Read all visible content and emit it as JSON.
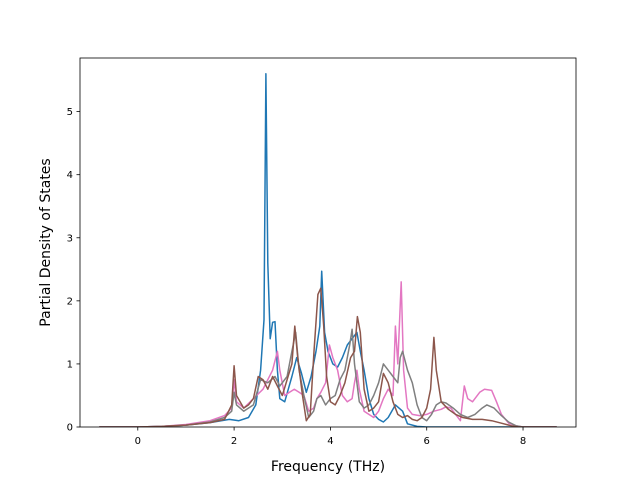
{
  "chart_data": {
    "type": "line",
    "title": "",
    "xlabel": "Frequency (THz)",
    "ylabel": "Partial Density of States",
    "xlim": [
      -1.2,
      9.1
    ],
    "ylim": [
      0,
      5.85
    ],
    "x_ticks": [
      0,
      2,
      4,
      6,
      8
    ],
    "y_ticks": [
      0,
      1,
      2,
      3,
      4,
      5
    ],
    "grid": false,
    "legend": "none",
    "series": [
      {
        "color": "#1f77b4",
        "points": [
          [
            -0.8,
            0
          ],
          [
            0,
            0
          ],
          [
            0.5,
            0.01
          ],
          [
            1.0,
            0.03
          ],
          [
            1.5,
            0.07
          ],
          [
            1.9,
            0.12
          ],
          [
            2.1,
            0.1
          ],
          [
            2.3,
            0.15
          ],
          [
            2.45,
            0.35
          ],
          [
            2.55,
            0.9
          ],
          [
            2.62,
            1.7
          ],
          [
            2.66,
            5.6
          ],
          [
            2.7,
            2.6
          ],
          [
            2.75,
            1.4
          ],
          [
            2.8,
            1.66
          ],
          [
            2.85,
            1.67
          ],
          [
            2.9,
            0.9
          ],
          [
            2.95,
            0.45
          ],
          [
            3.05,
            0.4
          ],
          [
            3.2,
            0.8
          ],
          [
            3.3,
            1.1
          ],
          [
            3.4,
            0.85
          ],
          [
            3.5,
            0.55
          ],
          [
            3.6,
            0.8
          ],
          [
            3.7,
            1.2
          ],
          [
            3.78,
            1.6
          ],
          [
            3.82,
            2.47
          ],
          [
            3.88,
            1.5
          ],
          [
            3.95,
            1.2
          ],
          [
            4.05,
            1.0
          ],
          [
            4.15,
            0.95
          ],
          [
            4.25,
            1.1
          ],
          [
            4.35,
            1.3
          ],
          [
            4.45,
            1.4
          ],
          [
            4.55,
            1.5
          ],
          [
            4.62,
            1.2
          ],
          [
            4.7,
            0.9
          ],
          [
            4.8,
            0.45
          ],
          [
            4.9,
            0.2
          ],
          [
            5.0,
            0.12
          ],
          [
            5.1,
            0.08
          ],
          [
            5.2,
            0.15
          ],
          [
            5.35,
            0.35
          ],
          [
            5.5,
            0.25
          ],
          [
            5.6,
            0.05
          ],
          [
            5.8,
            0.01
          ],
          [
            6.0,
            0
          ],
          [
            8.7,
            0
          ]
        ]
      },
      {
        "color": "#e377c2",
        "points": [
          [
            -0.8,
            0
          ],
          [
            0,
            0
          ],
          [
            0.5,
            0.01
          ],
          [
            1.0,
            0.04
          ],
          [
            1.5,
            0.1
          ],
          [
            1.8,
            0.18
          ],
          [
            1.95,
            0.3
          ],
          [
            2.0,
            0.75
          ],
          [
            2.05,
            0.4
          ],
          [
            2.2,
            0.3
          ],
          [
            2.4,
            0.45
          ],
          [
            2.6,
            0.6
          ],
          [
            2.8,
            0.9
          ],
          [
            2.9,
            1.2
          ],
          [
            2.95,
            0.9
          ],
          [
            3.05,
            0.5
          ],
          [
            3.15,
            0.55
          ],
          [
            3.25,
            0.6
          ],
          [
            3.35,
            0.55
          ],
          [
            3.45,
            0.5
          ],
          [
            3.55,
            0.25
          ],
          [
            3.65,
            0.3
          ],
          [
            3.72,
            0.45
          ],
          [
            3.8,
            0.55
          ],
          [
            3.9,
            0.7
          ],
          [
            3.98,
            1.3
          ],
          [
            4.05,
            1.1
          ],
          [
            4.15,
            0.9
          ],
          [
            4.25,
            0.5
          ],
          [
            4.35,
            0.4
          ],
          [
            4.45,
            0.45
          ],
          [
            4.5,
            0.7
          ],
          [
            4.55,
            0.9
          ],
          [
            4.6,
            0.6
          ],
          [
            4.7,
            0.25
          ],
          [
            4.8,
            0.2
          ],
          [
            4.9,
            0.15
          ],
          [
            5.0,
            0.25
          ],
          [
            5.1,
            0.45
          ],
          [
            5.2,
            0.6
          ],
          [
            5.3,
            0.5
          ],
          [
            5.35,
            1.6
          ],
          [
            5.4,
            1.0
          ],
          [
            5.47,
            2.3
          ],
          [
            5.52,
            0.9
          ],
          [
            5.6,
            0.3
          ],
          [
            5.7,
            0.2
          ],
          [
            5.85,
            0.18
          ],
          [
            6.0,
            0.2
          ],
          [
            6.15,
            0.25
          ],
          [
            6.3,
            0.28
          ],
          [
            6.4,
            0.32
          ],
          [
            6.5,
            0.3
          ],
          [
            6.6,
            0.2
          ],
          [
            6.7,
            0.1
          ],
          [
            6.78,
            0.65
          ],
          [
            6.85,
            0.45
          ],
          [
            6.95,
            0.4
          ],
          [
            7.1,
            0.55
          ],
          [
            7.2,
            0.6
          ],
          [
            7.35,
            0.58
          ],
          [
            7.45,
            0.4
          ],
          [
            7.55,
            0.2
          ],
          [
            7.7,
            0.06
          ],
          [
            7.85,
            0.02
          ],
          [
            8.0,
            0
          ],
          [
            8.7,
            0
          ]
        ]
      },
      {
        "color": "#7f7f7f",
        "points": [
          [
            -0.8,
            0
          ],
          [
            0,
            0
          ],
          [
            0.5,
            0.01
          ],
          [
            1.0,
            0.03
          ],
          [
            1.5,
            0.08
          ],
          [
            1.8,
            0.15
          ],
          [
            1.95,
            0.25
          ],
          [
            2.0,
            0.55
          ],
          [
            2.05,
            0.35
          ],
          [
            2.2,
            0.25
          ],
          [
            2.4,
            0.35
          ],
          [
            2.55,
            0.75
          ],
          [
            2.7,
            0.7
          ],
          [
            2.85,
            0.8
          ],
          [
            2.95,
            0.65
          ],
          [
            3.1,
            0.8
          ],
          [
            3.2,
            1.2
          ],
          [
            3.28,
            1.5
          ],
          [
            3.35,
            0.9
          ],
          [
            3.45,
            0.5
          ],
          [
            3.55,
            0.15
          ],
          [
            3.65,
            0.25
          ],
          [
            3.72,
            0.45
          ],
          [
            3.8,
            0.5
          ],
          [
            3.9,
            0.35
          ],
          [
            4.0,
            0.45
          ],
          [
            4.1,
            0.5
          ],
          [
            4.2,
            0.75
          ],
          [
            4.3,
            0.9
          ],
          [
            4.4,
            1.3
          ],
          [
            4.45,
            1.55
          ],
          [
            4.5,
            1.0
          ],
          [
            4.6,
            0.4
          ],
          [
            4.7,
            0.3
          ],
          [
            4.8,
            0.35
          ],
          [
            4.9,
            0.5
          ],
          [
            5.0,
            0.7
          ],
          [
            5.1,
            1.0
          ],
          [
            5.2,
            0.9
          ],
          [
            5.3,
            0.8
          ],
          [
            5.4,
            0.7
          ],
          [
            5.45,
            1.1
          ],
          [
            5.5,
            1.2
          ],
          [
            5.6,
            0.9
          ],
          [
            5.7,
            0.7
          ],
          [
            5.8,
            0.35
          ],
          [
            5.9,
            0.15
          ],
          [
            6.0,
            0.1
          ],
          [
            6.1,
            0.2
          ],
          [
            6.2,
            0.35
          ],
          [
            6.3,
            0.4
          ],
          [
            6.4,
            0.38
          ],
          [
            6.55,
            0.3
          ],
          [
            6.7,
            0.2
          ],
          [
            6.85,
            0.15
          ],
          [
            7.0,
            0.2
          ],
          [
            7.15,
            0.3
          ],
          [
            7.25,
            0.35
          ],
          [
            7.4,
            0.3
          ],
          [
            7.55,
            0.18
          ],
          [
            7.7,
            0.08
          ],
          [
            7.85,
            0.02
          ],
          [
            8.0,
            0
          ],
          [
            8.7,
            0
          ]
        ]
      },
      {
        "color": "#8c564b",
        "points": [
          [
            -0.8,
            0
          ],
          [
            0,
            0
          ],
          [
            0.5,
            0.01
          ],
          [
            1.0,
            0.03
          ],
          [
            1.5,
            0.07
          ],
          [
            1.8,
            0.12
          ],
          [
            1.95,
            0.35
          ],
          [
            2.0,
            0.97
          ],
          [
            2.05,
            0.5
          ],
          [
            2.2,
            0.3
          ],
          [
            2.3,
            0.35
          ],
          [
            2.4,
            0.45
          ],
          [
            2.5,
            0.8
          ],
          [
            2.6,
            0.75
          ],
          [
            2.7,
            0.6
          ],
          [
            2.8,
            0.8
          ],
          [
            2.9,
            0.65
          ],
          [
            3.0,
            0.5
          ],
          [
            3.1,
            0.75
          ],
          [
            3.2,
            1.0
          ],
          [
            3.26,
            1.6
          ],
          [
            3.32,
            1.1
          ],
          [
            3.42,
            0.5
          ],
          [
            3.5,
            0.1
          ],
          [
            3.58,
            0.2
          ],
          [
            3.66,
            1.2
          ],
          [
            3.74,
            2.1
          ],
          [
            3.8,
            2.2
          ],
          [
            3.86,
            1.6
          ],
          [
            3.92,
            0.8
          ],
          [
            4.0,
            0.4
          ],
          [
            4.1,
            0.35
          ],
          [
            4.2,
            0.5
          ],
          [
            4.3,
            0.7
          ],
          [
            4.42,
            1.1
          ],
          [
            4.5,
            1.2
          ],
          [
            4.56,
            1.75
          ],
          [
            4.62,
            1.5
          ],
          [
            4.7,
            0.6
          ],
          [
            4.8,
            0.25
          ],
          [
            4.9,
            0.3
          ],
          [
            5.0,
            0.4
          ],
          [
            5.1,
            0.85
          ],
          [
            5.2,
            0.7
          ],
          [
            5.3,
            0.4
          ],
          [
            5.4,
            0.2
          ],
          [
            5.5,
            0.15
          ],
          [
            5.6,
            0.18
          ],
          [
            5.7,
            0.12
          ],
          [
            5.8,
            0.1
          ],
          [
            5.9,
            0.15
          ],
          [
            6.0,
            0.3
          ],
          [
            6.08,
            0.6
          ],
          [
            6.15,
            1.42
          ],
          [
            6.2,
            0.9
          ],
          [
            6.3,
            0.4
          ],
          [
            6.45,
            0.28
          ],
          [
            6.6,
            0.2
          ],
          [
            6.75,
            0.15
          ],
          [
            6.95,
            0.12
          ],
          [
            7.15,
            0.12
          ],
          [
            7.35,
            0.1
          ],
          [
            7.55,
            0.06
          ],
          [
            7.75,
            0.02
          ],
          [
            7.9,
            0
          ],
          [
            8.7,
            0
          ]
        ]
      }
    ]
  }
}
